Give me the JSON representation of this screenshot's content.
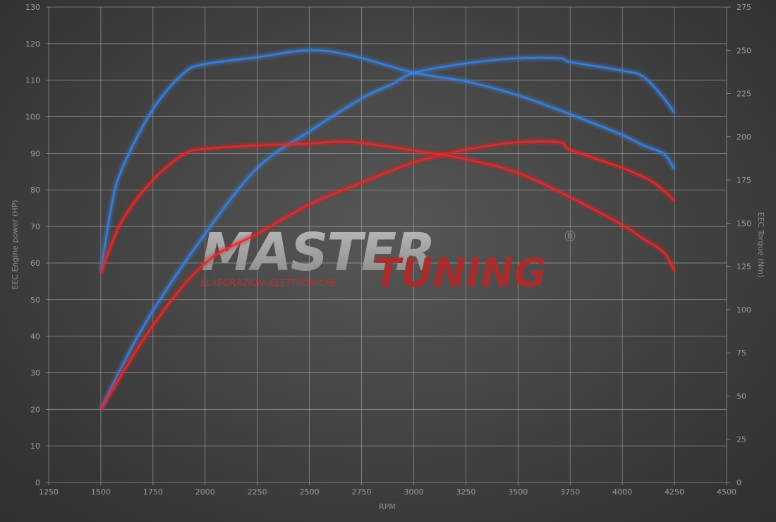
{
  "chart_data": {
    "type": "line",
    "xlabel": "RPM",
    "ylabel": "EEC Engine power (HP)",
    "y2label": "EEC Torque (Nm)",
    "xlim": [
      1250,
      4500
    ],
    "ylim": [
      0,
      130
    ],
    "y2lim": [
      0,
      275
    ],
    "xticks": [
      1250,
      1500,
      1750,
      2000,
      2250,
      2500,
      2750,
      3000,
      3250,
      3500,
      3750,
      4000,
      4250,
      4500
    ],
    "yticks": [
      0,
      10,
      20,
      30,
      40,
      50,
      60,
      70,
      80,
      90,
      100,
      110,
      120,
      130
    ],
    "y2ticks": [
      0,
      25,
      50,
      75,
      100,
      125,
      150,
      175,
      200,
      225,
      250,
      275
    ],
    "grid": true,
    "colors": {
      "tuned": "#3a7fd9",
      "stock": "#e02a2a"
    },
    "series": [
      {
        "key": "tuned-power",
        "axis": "left",
        "color": "#3a7fd9",
        "x": [
          1500,
          1600,
          1750,
          2000,
          2250,
          2500,
          2750,
          2900,
          3000,
          3250,
          3500,
          3700,
          3750,
          4000,
          4100,
          4200,
          4250
        ],
        "y": [
          20,
          31.6,
          47,
          68,
          86,
          96,
          105,
          109,
          112,
          114.6,
          116,
          116,
          115,
          112.6,
          111,
          105,
          101
        ]
      },
      {
        "key": "tuned-torque",
        "axis": "right",
        "color": "#3a7fd9",
        "x": [
          1500,
          1550,
          1600,
          1750,
          1900,
          2000,
          2250,
          2500,
          2700,
          3000,
          3250,
          3500,
          3750,
          4000,
          4100,
          4200,
          4250
        ],
        "y": [
          122,
          159,
          181,
          216,
          237,
          242,
          246,
          250,
          247,
          237,
          232,
          224,
          213,
          201,
          195,
          190,
          181
        ]
      },
      {
        "key": "stock-power",
        "axis": "left",
        "color": "#e02a2a",
        "x": [
          1500,
          1750,
          2000,
          2250,
          2500,
          2750,
          3000,
          3250,
          3500,
          3700,
          3750,
          4000,
          4150,
          4250
        ],
        "y": [
          20,
          43,
          60,
          68,
          76,
          82,
          87.5,
          91,
          93,
          93,
          91,
          86,
          82,
          77
        ]
      },
      {
        "key": "stock-torque",
        "axis": "right",
        "color": "#e02a2a",
        "x": [
          1500,
          1600,
          1750,
          1900,
          2000,
          2250,
          2500,
          2700,
          3000,
          3250,
          3500,
          3750,
          4000,
          4100,
          4200,
          4250
        ],
        "y": [
          121,
          151,
          175,
          190,
          193,
          195,
          196,
          197,
          192,
          187,
          179,
          165,
          149,
          141,
          133,
          122
        ]
      }
    ]
  },
  "watermark": {
    "brand_1": "MASTER",
    "brand_2": "TUNING",
    "tagline": "ELABORAZIONI ELETTRONICHE",
    "registered": "®"
  }
}
